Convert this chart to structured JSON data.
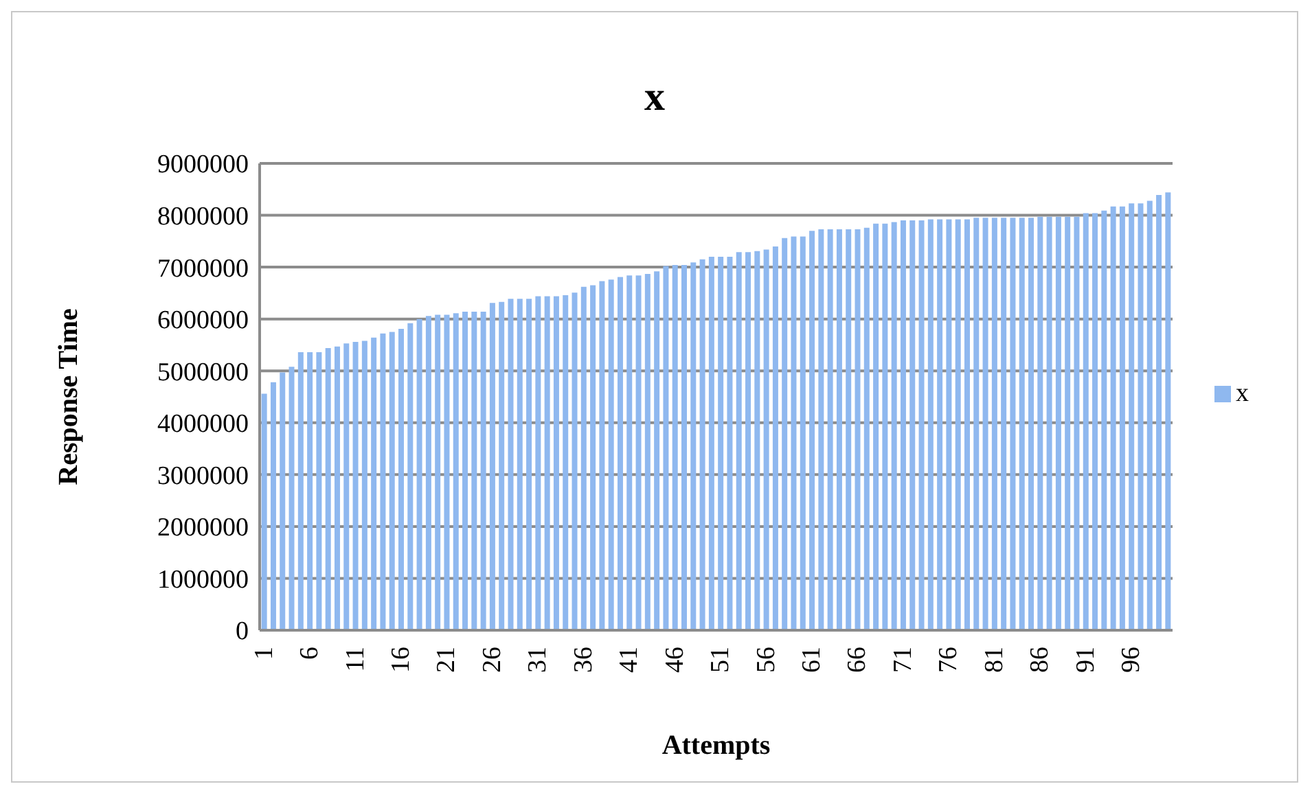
{
  "chart_data": {
    "type": "bar",
    "title": "x",
    "xlabel": "Attempts",
    "ylabel": "Response Time",
    "categories": [
      "1",
      null,
      null,
      null,
      null,
      "6",
      null,
      null,
      null,
      null,
      "11",
      null,
      null,
      null,
      null,
      "16",
      null,
      null,
      null,
      null,
      "21",
      null,
      null,
      null,
      null,
      "26",
      null,
      null,
      null,
      null,
      "31",
      null,
      null,
      null,
      null,
      "36",
      null,
      null,
      null,
      null,
      "41",
      null,
      null,
      null,
      null,
      "46",
      null,
      null,
      null,
      null,
      "51",
      null,
      null,
      null,
      null,
      "56",
      null,
      null,
      null,
      null,
      "61",
      null,
      null,
      null,
      null,
      "66",
      null,
      null,
      null,
      null,
      "71",
      null,
      null,
      null,
      null,
      "76",
      null,
      null,
      null,
      null,
      "81",
      null,
      null,
      null,
      null,
      "86",
      null,
      null,
      null,
      null,
      "91",
      null,
      null,
      null,
      null,
      "96",
      null,
      null,
      null,
      null
    ],
    "series": [
      {
        "name": "x",
        "color": "#8fb8ef",
        "values": [
          4560000,
          4780000,
          4970000,
          5080000,
          5360000,
          5360000,
          5360000,
          5440000,
          5470000,
          5530000,
          5560000,
          5580000,
          5640000,
          5720000,
          5750000,
          5810000,
          5920000,
          6000000,
          6060000,
          6080000,
          6080000,
          6110000,
          6140000,
          6140000,
          6140000,
          6310000,
          6330000,
          6390000,
          6390000,
          6390000,
          6440000,
          6440000,
          6440000,
          6460000,
          6510000,
          6620000,
          6650000,
          6730000,
          6760000,
          6810000,
          6840000,
          6840000,
          6870000,
          6920000,
          7020000,
          7040000,
          7040000,
          7090000,
          7150000,
          7200000,
          7200000,
          7200000,
          7290000,
          7290000,
          7310000,
          7340000,
          7400000,
          7560000,
          7590000,
          7590000,
          7700000,
          7730000,
          7730000,
          7730000,
          7730000,
          7730000,
          7760000,
          7840000,
          7840000,
          7870000,
          7900000,
          7900000,
          7900000,
          7920000,
          7920000,
          7920000,
          7920000,
          7920000,
          7950000,
          7950000,
          7950000,
          7950000,
          7950000,
          7950000,
          7950000,
          7970000,
          7970000,
          7970000,
          7970000,
          7970000,
          8040000,
          8040000,
          8090000,
          8170000,
          8170000,
          8230000,
          8230000,
          8280000,
          8390000,
          8440000
        ]
      }
    ],
    "ylim": [
      0,
      9000000
    ],
    "yticks": [
      0,
      1000000,
      2000000,
      3000000,
      4000000,
      5000000,
      6000000,
      7000000,
      8000000,
      9000000
    ],
    "grid": "y",
    "legend": "right"
  }
}
